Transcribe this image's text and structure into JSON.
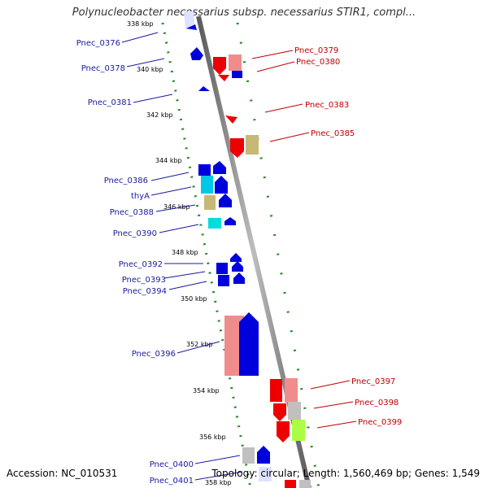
{
  "title": "Polynucleobacter necessarius subsp. necessarius STIR1, compl...",
  "footer": {
    "accession": "Accession: NC_010531",
    "summary": "Topology: circular; Length: 1,560,469 bp; Genes: 1,549"
  },
  "ruler_labels": [
    "338 kbp",
    "340 kbp",
    "342 kbp",
    "344 kbp",
    "346 kbp",
    "348 kbp",
    "350 kbp",
    "352 kbp",
    "354 kbp",
    "356 kbp",
    "358 kbp"
  ],
  "left_gene_labels": [
    "Pnec_0376",
    "Pnec_0378",
    "Pnec_0381",
    "Pnec_0386",
    "thyA",
    "Pnec_0388",
    "Pnec_0390",
    "Pnec_0392",
    "Pnec_0393",
    "Pnec_0394",
    "Pnec_0396",
    "Pnec_0400",
    "Pnec_0401"
  ],
  "right_gene_labels": [
    "Pnec_0379",
    "Pnec_0380",
    "Pnec_0383",
    "Pnec_0385",
    "Pnec_0397",
    "Pnec_0398",
    "Pnec_0399"
  ],
  "colors": {
    "forward_cds": "#0000dd",
    "reverse_cds": "#ee0000",
    "rna_pink": "#f08c8c",
    "khaki": "#c8b878",
    "cyan": "#00ccdd",
    "grey": "#c0c0c0",
    "lime": "#aaff44",
    "ruler_dots": "#228822",
    "backbone": "#808080"
  }
}
